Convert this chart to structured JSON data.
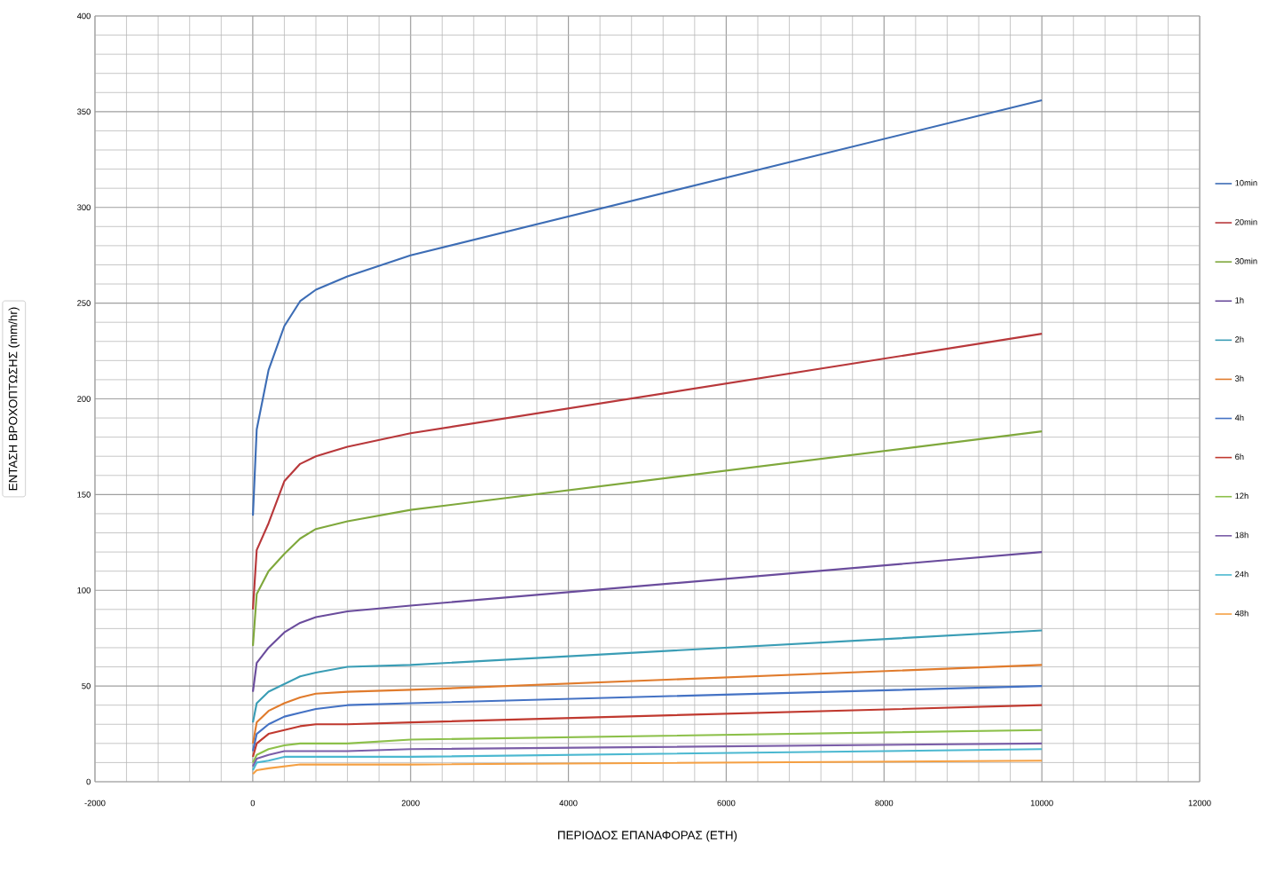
{
  "chart_data": {
    "type": "line",
    "xlabel": "ΠΕΡΙΟΔΟΣ ΕΠΑΝΑΦΟΡΑΣ (ΕΤΗ)",
    "ylabel": "ΕΝΤΑΣΗ ΒΡΟΧΟΠΤΩΣΗΣ (mm/hr)",
    "x": [
      2,
      50,
      200,
      400,
      600,
      800,
      1200,
      2000,
      10000
    ],
    "series": [
      {
        "name": "10min",
        "color": "#3d6db5",
        "values": [
          139,
          184,
          215,
          238,
          251,
          257,
          264,
          275,
          356
        ]
      },
      {
        "name": "20min",
        "color": "#b8383b",
        "values": [
          90,
          121,
          135,
          157,
          166,
          170,
          175,
          182,
          234
        ]
      },
      {
        "name": "30min",
        "color": "#7fa83c",
        "values": [
          71,
          98,
          110,
          119,
          127,
          132,
          136,
          142,
          183
        ]
      },
      {
        "name": "1h",
        "color": "#6a4c9c",
        "values": [
          47,
          62,
          70,
          78,
          83,
          86,
          89,
          92,
          120
        ]
      },
      {
        "name": "2h",
        "color": "#3a9db5",
        "values": [
          31,
          41,
          47,
          51,
          55,
          57,
          60,
          61,
          79
        ]
      },
      {
        "name": "3h",
        "color": "#e07b2c",
        "values": [
          20,
          31,
          37,
          41,
          44,
          46,
          47,
          48,
          61
        ]
      },
      {
        "name": "4h",
        "color": "#4472c4",
        "values": [
          16,
          25,
          30,
          34,
          36,
          38,
          40,
          41,
          50
        ]
      },
      {
        "name": "6h",
        "color": "#c0392f",
        "values": [
          13,
          20,
          25,
          27,
          29,
          30,
          30,
          31,
          40
        ]
      },
      {
        "name": "12h",
        "color": "#8cc04a",
        "values": [
          10,
          14,
          17,
          19,
          20,
          20,
          20,
          22,
          27
        ]
      },
      {
        "name": "18h",
        "color": "#7b5ea8",
        "values": [
          8,
          12,
          14,
          16,
          16,
          16,
          16,
          17,
          20
        ]
      },
      {
        "name": "24h",
        "color": "#4bb8d0",
        "values": [
          6,
          10,
          11,
          13,
          13,
          13,
          13,
          13,
          17
        ]
      },
      {
        "name": "48h",
        "color": "#f5a043",
        "values": [
          4,
          6,
          7,
          8,
          9,
          9,
          9,
          9,
          11
        ]
      }
    ],
    "xlim": [
      -2000,
      12000
    ],
    "ylim": [
      0,
      400
    ],
    "xticks": [
      -2000,
      0,
      2000,
      4000,
      6000,
      8000,
      10000,
      12000
    ],
    "yticks": [
      0,
      50,
      100,
      150,
      200,
      250,
      300,
      350,
      400
    ],
    "grid": true,
    "legend": "right"
  }
}
